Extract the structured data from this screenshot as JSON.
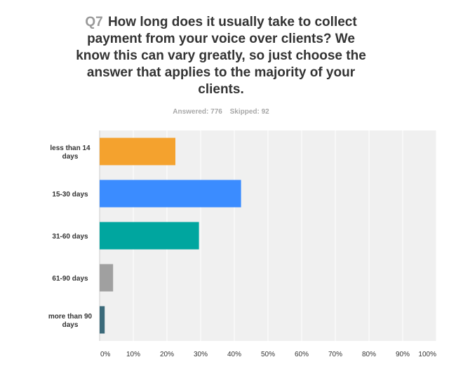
{
  "question": {
    "number": "Q7",
    "text": "How long does it usually take to collect payment from your voice over clients? We know this can vary greatly, so just choose the answer that applies to the majority of your clients."
  },
  "stats": {
    "answered": "Answered: 776",
    "skipped": "Skipped: 92"
  },
  "chart_data": {
    "type": "bar",
    "orientation": "horizontal",
    "categories": [
      [
        "less than 14",
        "days"
      ],
      [
        "15-30 days"
      ],
      [
        "31-60 days"
      ],
      [
        "61-90 days"
      ],
      [
        "more than 90",
        "days"
      ]
    ],
    "values": [
      22.5,
      42,
      29.5,
      4,
      1.5
    ],
    "colors": [
      "#f4a22e",
      "#3b8cff",
      "#00a69f",
      "#a0a0a0",
      "#3b6a7a"
    ],
    "xlim": [
      0,
      100
    ],
    "ticks": [
      "0%",
      "10%",
      "20%",
      "30%",
      "40%",
      "50%",
      "60%",
      "70%",
      "80%",
      "90%",
      "100%"
    ],
    "grid": true,
    "background": "#f0f0f0"
  }
}
